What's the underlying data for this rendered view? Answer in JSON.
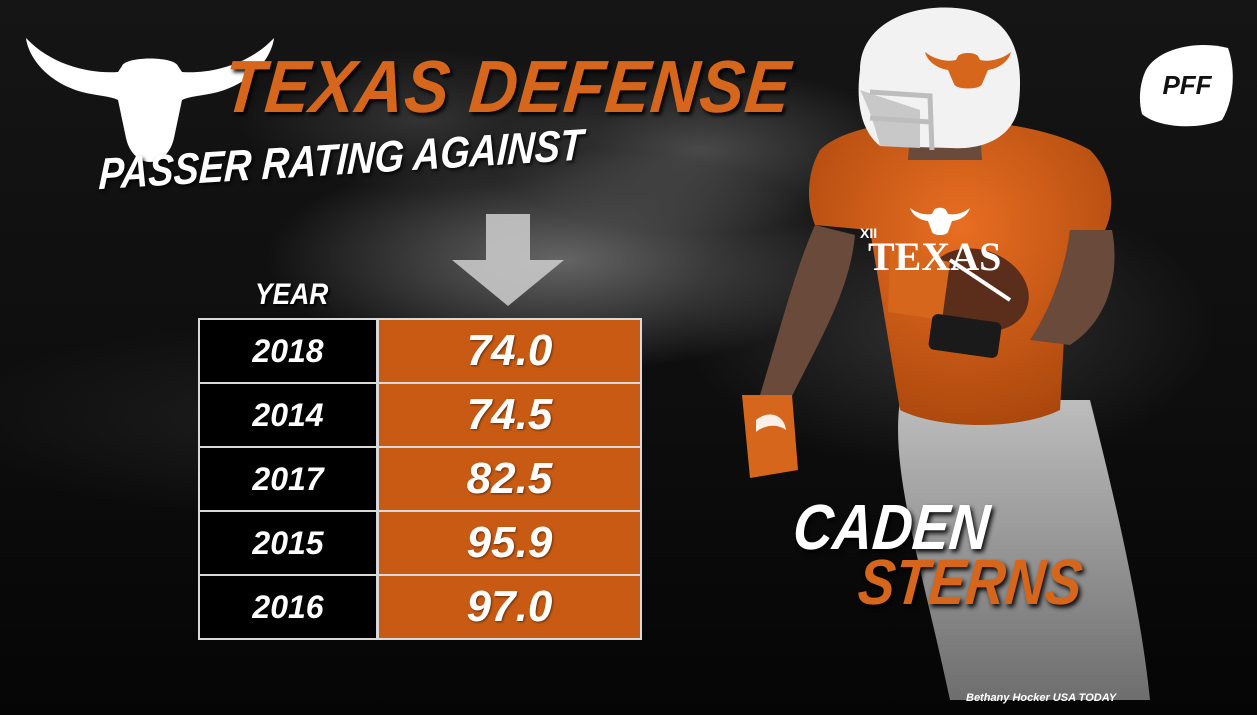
{
  "title": "TEXAS DEFENSE",
  "subtitle": "PASSER RATING AGAINST",
  "table": {
    "year_header": "YEAR"
  },
  "chart_data": {
    "type": "table",
    "title": "TEXAS DEFENSE",
    "subtitle": "PASSER RATING AGAINST",
    "columns": [
      "YEAR"
    ],
    "rows": [
      {
        "year": "2018",
        "value": "74.0"
      },
      {
        "year": "2014",
        "value": "74.5"
      },
      {
        "year": "2017",
        "value": "82.5"
      },
      {
        "year": "2015",
        "value": "95.9"
      },
      {
        "year": "2016",
        "value": "97.0"
      }
    ]
  },
  "player": {
    "first_name": "CADEN",
    "last_name": "STERNS",
    "jersey_text": "TEXAS"
  },
  "brand": {
    "logo_text": "PFF"
  },
  "credit": "Bethany Hocker USA TODAY",
  "colors": {
    "accent": "#d5661c",
    "cell_orange": "#c95a13",
    "background": "#0b0b0b"
  }
}
